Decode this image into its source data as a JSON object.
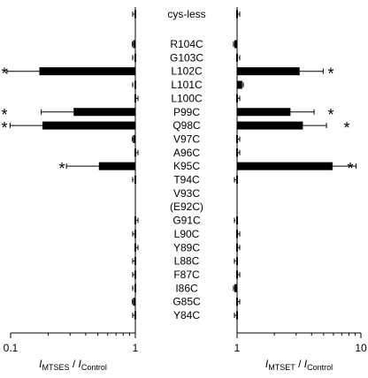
{
  "chart_data": {
    "type": "bar",
    "orientation": "horizontal",
    "grid": false,
    "legend": "none",
    "center_header": "cys-less",
    "categories": [
      "R104C",
      "G103C",
      "L102C",
      "L101C",
      "L100C",
      "P99C",
      "Q98C",
      "V97C",
      "A96C",
      "K95C",
      "T94C",
      "V93C",
      "(E92C)",
      "G91C",
      "L90C",
      "Y89C",
      "L88C",
      "F87C",
      "I86C",
      "G85C",
      "Y84C"
    ],
    "baseline": 1,
    "panels": [
      {
        "id": "mtses",
        "direction": "left",
        "scale": "log",
        "xlim": [
          0.1,
          1
        ],
        "tick_labels": [
          "0.1",
          "1"
        ],
        "xlabel": {
          "main": "I",
          "sub1": "MTSES",
          "sep": " / ",
          "main2": "I",
          "sub2": "Control"
        },
        "cys_less_value": 1.0,
        "values": [
          0.96,
          0.97,
          0.17,
          0.97,
          1.0,
          0.32,
          0.18,
          0.96,
          1.0,
          0.51,
          0.97,
          null,
          null,
          1.0,
          0.99,
          1.0,
          0.99,
          0.99,
          0.97,
          0.96,
          0.99
        ],
        "significant": [
          false,
          false,
          true,
          false,
          false,
          true,
          true,
          false,
          false,
          true,
          false,
          false,
          false,
          false,
          false,
          false,
          false,
          false,
          false,
          false,
          false
        ]
      },
      {
        "id": "mtset",
        "direction": "right",
        "scale": "log",
        "xlim": [
          1,
          10
        ],
        "tick_labels": [
          "1",
          "10"
        ],
        "xlabel": {
          "main": "I",
          "sub1": "MTSET",
          "sep": " / ",
          "main2": "I",
          "sub2": "Control"
        },
        "cys_less_value": 1.0,
        "values": [
          0.95,
          1.03,
          3.2,
          1.1,
          1.0,
          2.7,
          3.4,
          1.0,
          1.0,
          5.9,
          0.98,
          null,
          null,
          0.97,
          1.0,
          1.01,
          0.98,
          1.0,
          0.95,
          1.0,
          0.99
        ],
        "significant": [
          false,
          false,
          true,
          false,
          false,
          true,
          true,
          false,
          false,
          true,
          false,
          false,
          false,
          false,
          false,
          false,
          false,
          false,
          false,
          false,
          false
        ]
      }
    ],
    "significance_marker": "*"
  }
}
